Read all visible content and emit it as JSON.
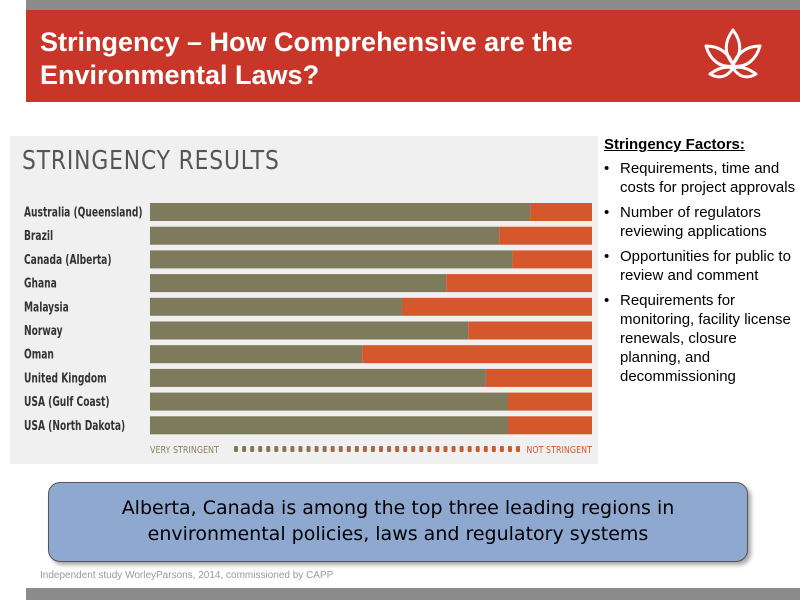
{
  "slide": {
    "title_line1": "Stringency – How Comprehensive are the",
    "title_line2": "Environmental Laws?",
    "logo": "lotus-logo-icon",
    "source": "Independent study WorleyParsons, 2014, commissioned by CAPP"
  },
  "factors": {
    "heading": "Stringency Factors:",
    "items": [
      "Requirements, time and costs for project approvals",
      "Number of regulators reviewing applications",
      "Opportunities for public to review and comment",
      "Requirements for monitoring, facility license renewals, closure planning, and decommissioning"
    ]
  },
  "callout": {
    "line1": "Alberta, Canada is among the top three leading regions in",
    "line2": "environmental policies, laws and regulatory systems"
  },
  "colors": {
    "header_red": "#c8362a",
    "bar_olive": "#7d7b5c",
    "bar_orange": "#d4582b",
    "callout_blue": "#8fa8d0"
  },
  "chart_data": {
    "type": "bar",
    "orientation": "horizontal",
    "stacked": true,
    "title": "STRINGENCY RESULTS",
    "categories": [
      "Australia (Queensland)",
      "Brazil",
      "Canada (Alberta)",
      "Ghana",
      "Malaysia",
      "Norway",
      "Oman",
      "United Kingdom",
      "USA (Gulf Coast)",
      "USA (North Dakota)"
    ],
    "stringency_fraction": [
      0.86,
      0.79,
      0.82,
      0.67,
      0.57,
      0.72,
      0.48,
      0.76,
      0.81,
      0.81
    ],
    "scale": {
      "left_label": "VERY STRINGENT",
      "right_label": "NOT STRINGENT"
    },
    "xlim": [
      0,
      1
    ]
  }
}
